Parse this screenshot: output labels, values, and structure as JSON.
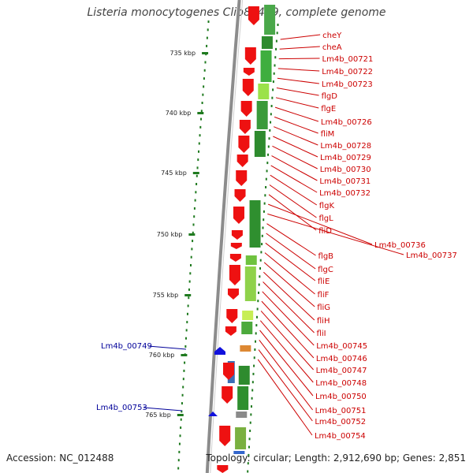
{
  "title": "Listeria monocytogenes Clip81459, complete genome",
  "accession": "Accession: NC_012488",
  "topology": "Topology: circular; Length: 2,912,690 bp; Genes: 2,851",
  "colors": {
    "forward_gene": "#ee1111",
    "reverse_gene": "#1111dd",
    "forward_label": "#cc0000",
    "reverse_label": "#000099",
    "tick": "#1f7a1f",
    "backbone": "#8c8c8c",
    "leader": "#cc0000"
  },
  "ruler": [
    {
      "label": "735 kbp"
    },
    {
      "label": "740 kbp"
    },
    {
      "label": "745 kbp"
    },
    {
      "label": "750 kbp"
    },
    {
      "label": "755 kbp"
    },
    {
      "label": "760 kbp"
    },
    {
      "label": "765 kbp"
    }
  ],
  "forward_labels": [
    "cheY",
    "cheA",
    "Lm4b_00721",
    "Lm4b_00722",
    "Lm4b_00723",
    "flgD",
    "flgE",
    "Lm4b_00726",
    "fliM",
    "Lm4b_00728",
    "Lm4b_00729",
    "Lm4b_00730",
    "Lm4b_00731",
    "Lm4b_00732",
    "flgK",
    "flgL",
    "fliD",
    "Lm4b_00736",
    "Lm4b_00737",
    "flgB",
    "flgC",
    "fliE",
    "fliF",
    "fliG",
    "fliH",
    "fliI",
    "Lm4b_00745",
    "Lm4b_00746",
    "Lm4b_00747",
    "Lm4b_00748",
    "Lm4b_00750",
    "Lm4b_00751",
    "Lm4b_00752",
    "Lm4b_00754"
  ],
  "reverse_labels": [
    "Lm4b_00749",
    "Lm4b_00753"
  ]
}
